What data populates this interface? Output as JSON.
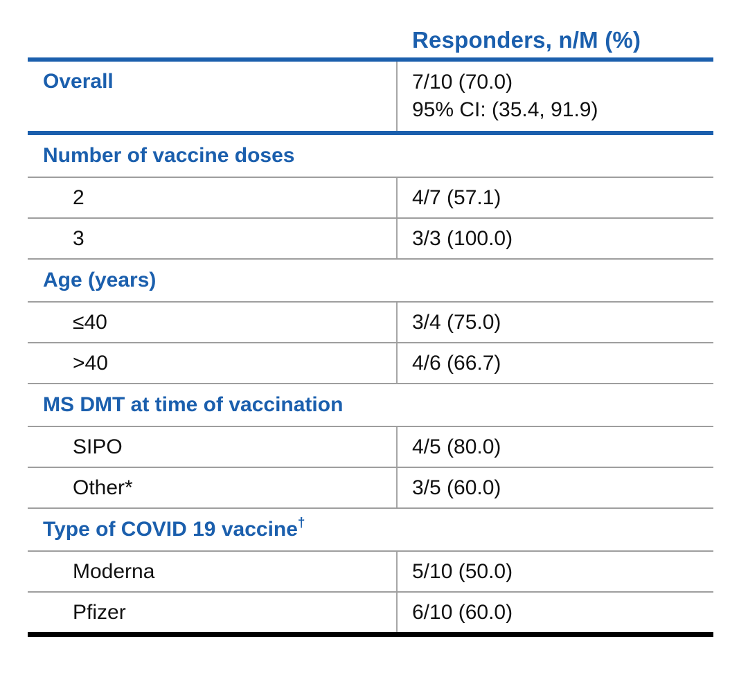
{
  "table": {
    "column_header": "Responders, n/M (%)",
    "overall": {
      "label": "Overall",
      "value": "7/10 (70.0)",
      "ci": "95% CI: (35.4, 91.9)"
    },
    "sections": [
      {
        "title": "Number of vaccine doses",
        "rows": [
          {
            "label": "2",
            "value": "4/7 (57.1)"
          },
          {
            "label": "3",
            "value": "3/3 (100.0)"
          }
        ]
      },
      {
        "title": "Age (years)",
        "rows": [
          {
            "label": "≤40",
            "value": "3/4 (75.0)"
          },
          {
            "label": ">40",
            "value": "4/6 (66.7)"
          }
        ]
      },
      {
        "title": "MS DMT at time of vaccination",
        "rows": [
          {
            "label": "SIPO",
            "value": "4/5 (80.0)"
          },
          {
            "label": "Other*",
            "value": "3/5 (60.0)"
          }
        ]
      },
      {
        "title": "Type of COVID 19 vaccine",
        "title_sup": "†",
        "rows": [
          {
            "label": "Moderna",
            "value": "5/10 (50.0)"
          },
          {
            "label": "Pfizer",
            "value": "6/10 (60.0)"
          }
        ]
      }
    ],
    "colors": {
      "accent_blue": "#1b5fad",
      "grid_gray": "#9e9e9e",
      "divider_gray": "#a6a6a6",
      "bottom_rule_black": "#000000",
      "text_black": "#111111"
    }
  }
}
